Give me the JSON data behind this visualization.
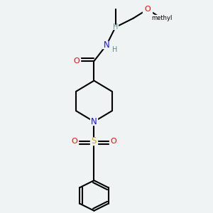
{
  "background_color": "#f0f3f4",
  "bond_color": "#000000",
  "bond_width": 1.5,
  "atom_colors": {
    "C": "#000000",
    "N": "#1010ff",
    "O": "#ff0000",
    "S": "#ccaa00",
    "H": "#5a8a8a"
  },
  "figsize": [
    3.0,
    3.0
  ],
  "dpi": 100,
  "xlim": [
    0.0,
    1.0
  ],
  "ylim": [
    0.0,
    1.0
  ]
}
